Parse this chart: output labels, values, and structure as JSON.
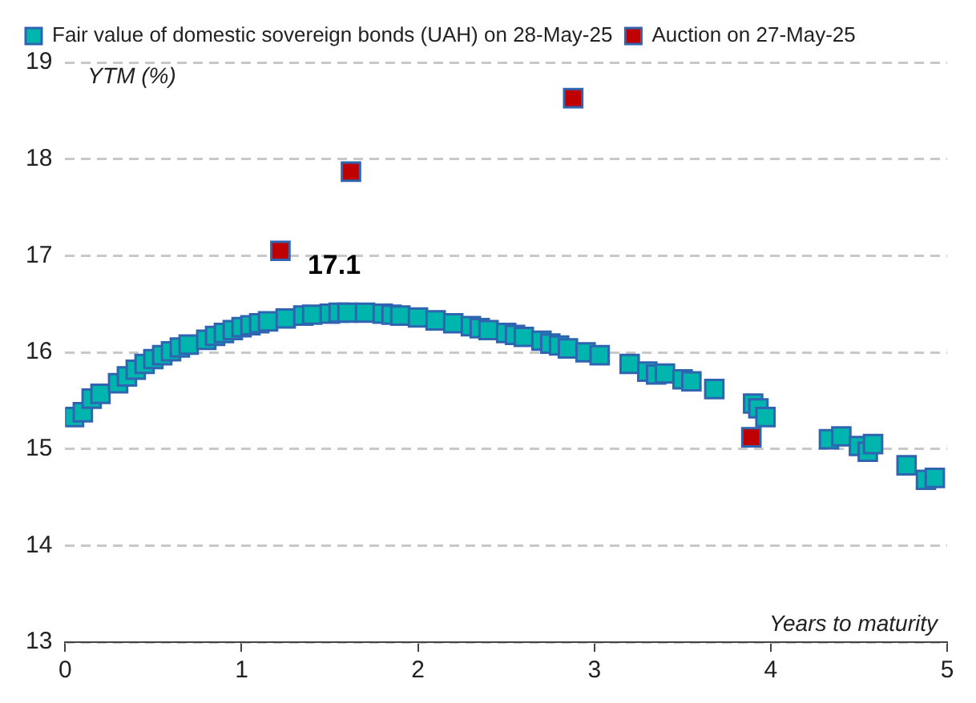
{
  "chart_data": {
    "type": "scatter",
    "xlabel": "Years to maturity",
    "ylabel": "YTM (%)",
    "xlim": [
      0,
      5
    ],
    "xticks": [
      0,
      1,
      2,
      3,
      4,
      5
    ],
    "ylim": [
      13,
      19
    ],
    "yticks": [
      13,
      14,
      15,
      16,
      17,
      18,
      19
    ],
    "grid": "y",
    "legend": "top left",
    "marker": "square",
    "series": [
      {
        "name": "Fair value of domestic sovereign bonds (UAH) on 28-May-25",
        "color": "#00b5ad",
        "x": [
          0.05,
          0.1,
          0.15,
          0.2,
          0.3,
          0.35,
          0.4,
          0.45,
          0.5,
          0.55,
          0.6,
          0.65,
          0.7,
          0.8,
          0.85,
          0.9,
          0.95,
          1.0,
          1.05,
          1.1,
          1.15,
          1.25,
          1.35,
          1.4,
          1.5,
          1.55,
          1.6,
          1.7,
          1.8,
          1.85,
          1.9,
          2.0,
          2.1,
          2.2,
          2.3,
          2.35,
          2.4,
          2.5,
          2.55,
          2.6,
          2.7,
          2.75,
          2.8,
          2.85,
          2.95,
          3.03,
          3.2,
          3.3,
          3.35,
          3.4,
          3.5,
          3.55,
          3.68,
          3.9,
          3.93,
          3.97,
          4.33,
          4.4,
          4.5,
          4.55,
          4.58,
          4.77,
          4.88,
          4.93
        ],
        "values": [
          15.33,
          15.38,
          15.52,
          15.57,
          15.68,
          15.75,
          15.82,
          15.88,
          15.93,
          15.97,
          16.01,
          16.05,
          16.08,
          16.13,
          16.17,
          16.2,
          16.23,
          16.26,
          16.28,
          16.3,
          16.32,
          16.35,
          16.38,
          16.39,
          16.4,
          16.41,
          16.41,
          16.41,
          16.4,
          16.39,
          16.38,
          16.36,
          16.33,
          16.3,
          16.27,
          16.25,
          16.23,
          16.2,
          16.18,
          16.16,
          16.12,
          16.09,
          16.07,
          16.04,
          16.0,
          15.97,
          15.88,
          15.8,
          15.77,
          15.78,
          15.72,
          15.7,
          15.62,
          15.47,
          15.42,
          15.33,
          15.1,
          15.13,
          15.03,
          14.97,
          15.05,
          14.83,
          14.68,
          14.7
        ]
      },
      {
        "name": "Auction on 27-May-25",
        "color": "#c00000",
        "x": [
          1.22,
          1.62,
          2.88,
          3.89
        ],
        "values": [
          17.05,
          17.87,
          18.63,
          15.12
        ],
        "value_labels": [
          "17.1",
          null,
          null,
          null
        ]
      }
    ]
  }
}
